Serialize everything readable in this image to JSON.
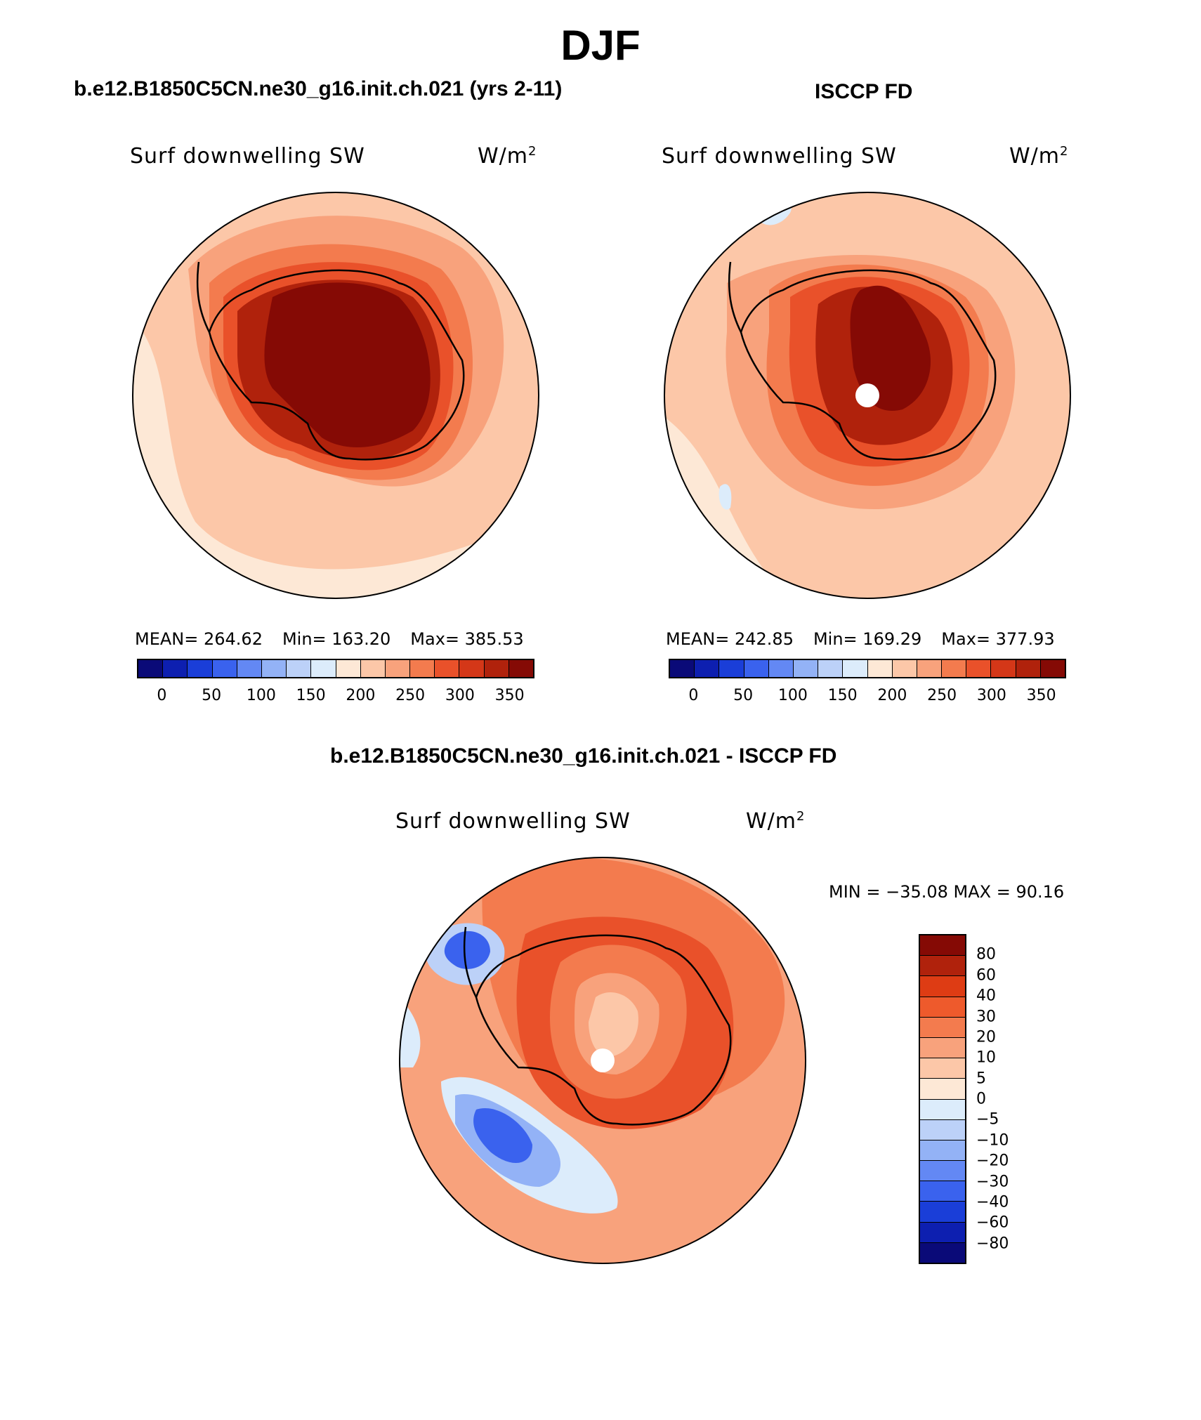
{
  "title": "DJF",
  "panels": [
    {
      "case": "b.e12.B1850C5CN.ne30_g16.init.ch.021 (yrs 2-11)",
      "variable": "Surf downwelling SW",
      "units": "W/m",
      "units_sup": "2",
      "mean": "MEAN= 264.62",
      "min": "Min= 163.20",
      "max": "Max= 385.53"
    },
    {
      "case": "ISCCP FD",
      "variable": "Surf downwelling SW",
      "units": "W/m",
      "units_sup": "2",
      "mean": "MEAN= 242.85",
      "min": "Min= 169.29",
      "max": "Max= 377.93"
    }
  ],
  "diff": {
    "case": "b.e12.B1850C5CN.ne30_g16.init.ch.021 - ISCCP FD",
    "variable": "Surf downwelling SW",
    "units": "W/m",
    "units_sup": "2",
    "minmax": "MIN = −35.08 MAX =   90.16"
  },
  "colorbar_abs": {
    "colors": [
      "#0a0a78",
      "#0d1fb0",
      "#1a3ed8",
      "#3a62ee",
      "#6388f4",
      "#93b2f6",
      "#bcd1f8",
      "#dcecfb",
      "#fde8d6",
      "#fcc7a8",
      "#f8a27c",
      "#f37b4e",
      "#e9512a",
      "#d43718",
      "#b0220c",
      "#850a05"
    ],
    "labels": [
      "0",
      "50",
      "100",
      "150",
      "200",
      "250",
      "300",
      "350"
    ]
  },
  "colorbar_diff": {
    "colors": [
      "#850a05",
      "#b0220c",
      "#de3c14",
      "#ee5a2c",
      "#f37b4e",
      "#f8a27c",
      "#fcc7a8",
      "#fde8d6",
      "#dcecfb",
      "#bcd1f8",
      "#93b2f6",
      "#6388f4",
      "#3a62ee",
      "#1a3ed8",
      "#0d1fb0",
      "#0a0a78"
    ],
    "labels": [
      "80",
      "60",
      "40",
      "30",
      "20",
      "10",
      "5",
      "0",
      "−5",
      "−10",
      "−20",
      "−30",
      "−40",
      "−60",
      "−80"
    ]
  }
}
